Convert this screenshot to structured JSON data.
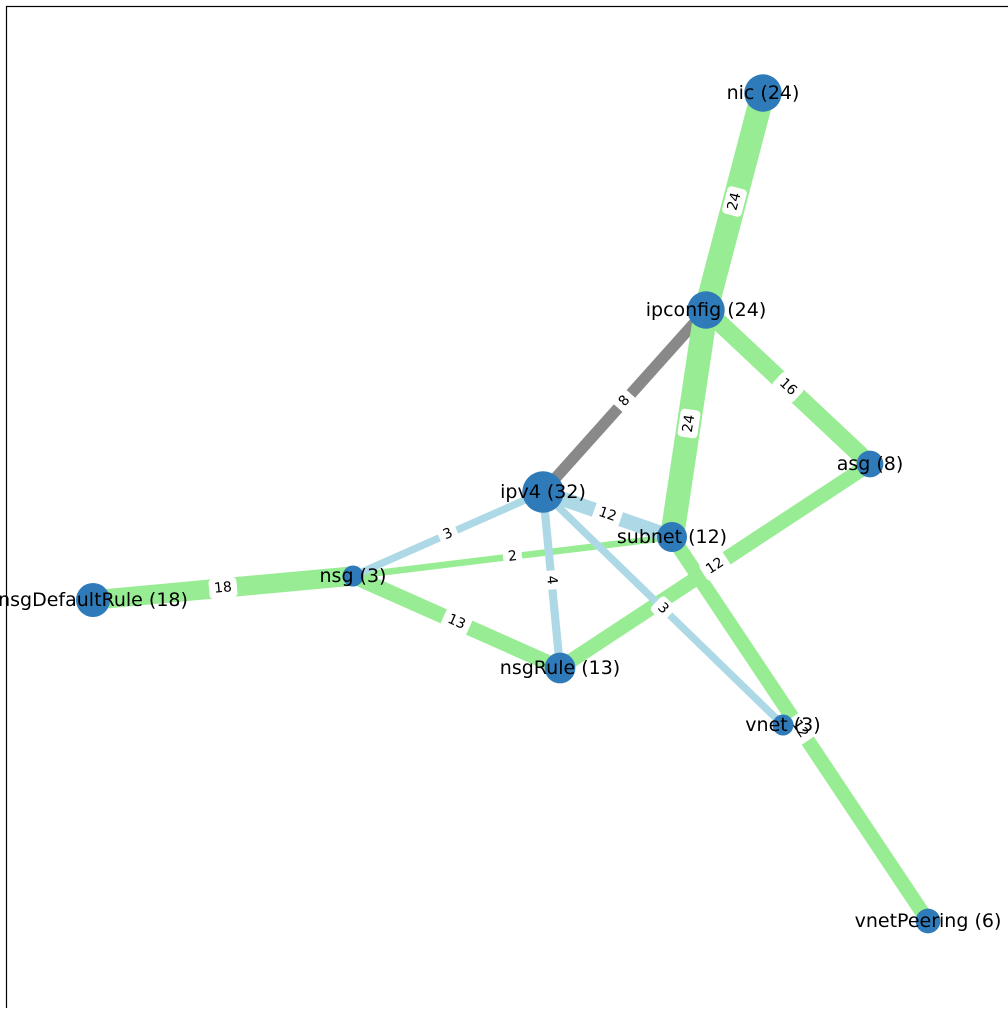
{
  "graph": {
    "colors": {
      "node_fill": "#2f7ab8",
      "edge_green": "#98ec93",
      "edge_blue": "#add8e6",
      "edge_gray": "#898989",
      "frame": "#000000",
      "label_box": "#ffffff"
    },
    "nodes": [
      {
        "id": "nic",
        "label": "nic (24)",
        "size": 24
      },
      {
        "id": "ipconfig",
        "label": "ipconfig (24)",
        "size": 24
      },
      {
        "id": "asg",
        "label": "asg (8)",
        "size": 8
      },
      {
        "id": "ipv4",
        "label": "ipv4 (32)",
        "size": 32
      },
      {
        "id": "subnet",
        "label": "subnet (12)",
        "size": 12
      },
      {
        "id": "nsg",
        "label": "nsg (3)",
        "size": 3
      },
      {
        "id": "nsgDefaultRule",
        "label": "nsgDefaultRule (18)",
        "size": 18
      },
      {
        "id": "nsgRule",
        "label": "nsgRule (13)",
        "size": 13
      },
      {
        "id": "vnet",
        "label": "vnet (3)",
        "size": 3
      },
      {
        "id": "vnetPeering",
        "label": "vnetPeering (6)",
        "size": 6
      }
    ],
    "edges": [
      {
        "source": "nic",
        "target": "ipconfig",
        "weight": 24,
        "label": "24",
        "color": "green"
      },
      {
        "source": "ipconfig",
        "target": "ipv4",
        "weight": 8,
        "label": "8",
        "color": "gray"
      },
      {
        "source": "ipconfig",
        "target": "subnet",
        "weight": 24,
        "label": "24",
        "color": "green"
      },
      {
        "source": "ipconfig",
        "target": "asg",
        "weight": 16,
        "label": "16",
        "color": "green"
      },
      {
        "source": "asg",
        "target": "nsgRule",
        "weight": 12,
        "label": "12",
        "color": "green"
      },
      {
        "source": "nsgDefaultRule",
        "target": "nsg",
        "weight": 18,
        "label": "18",
        "color": "green"
      },
      {
        "source": "nsg",
        "target": "nsgRule",
        "weight": 13,
        "label": "13",
        "color": "green"
      },
      {
        "source": "nsg",
        "target": "subnet",
        "weight": 2,
        "label": "2",
        "color": "green"
      },
      {
        "source": "subnet",
        "target": "vnetPeering",
        "weight": 12,
        "label": "12",
        "color": "green"
      },
      {
        "source": "ipv4",
        "target": "nsg",
        "weight": 3,
        "label": "3",
        "color": "blue"
      },
      {
        "source": "ipv4",
        "target": "nsgRule",
        "weight": 4,
        "label": "4",
        "color": "blue"
      },
      {
        "source": "ipv4",
        "target": "subnet",
        "weight": 12,
        "label": "12",
        "color": "blue"
      },
      {
        "source": "ipv4",
        "target": "vnet",
        "weight": 3,
        "label": "3",
        "color": "blue"
      }
    ]
  }
}
